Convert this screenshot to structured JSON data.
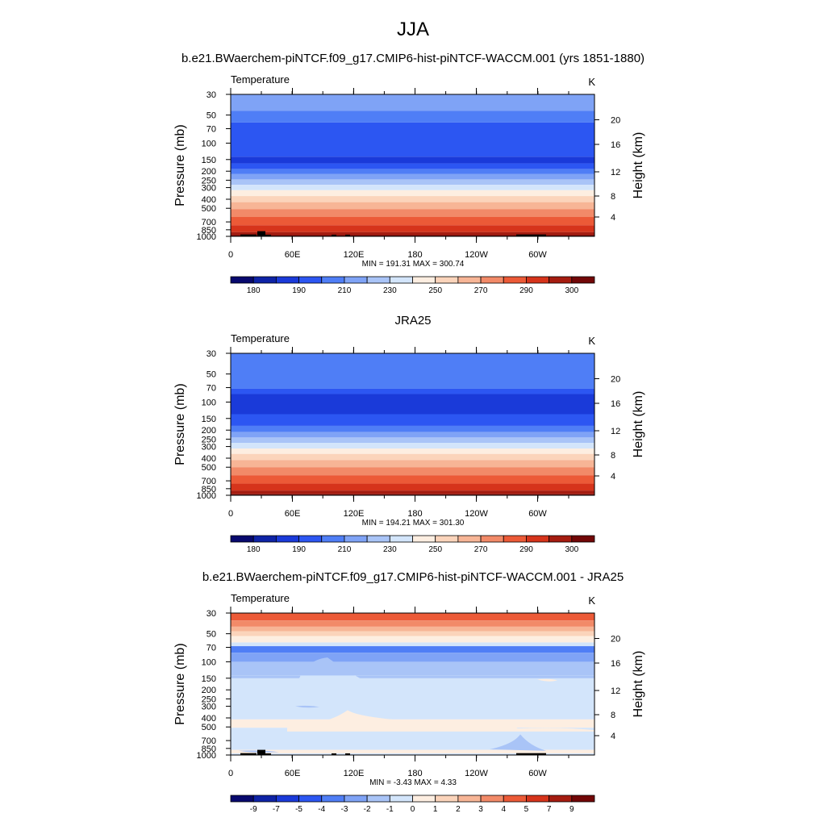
{
  "figure": {
    "title": "JJA"
  },
  "chart_data": [
    {
      "type": "heatmap",
      "title": "b.e21.BWaerchem-piNTCF.f09_g17.CMIP6-hist-piNTCF-WACCM.001 (yrs 1851-1880)",
      "left_label": "Temperature",
      "right_label": "K",
      "ylabel": "Pressure (mb)",
      "ylabel_right": "Height (km)",
      "xticks": [
        "0",
        "60E",
        "120E",
        "180",
        "120W",
        "60W"
      ],
      "yticks": [
        "30",
        "50",
        "70",
        "100",
        "150",
        "200",
        "250",
        "300",
        "400",
        "500",
        "700",
        "850",
        "1000"
      ],
      "yticks_right": [
        "20",
        "16",
        "12",
        "8",
        "4"
      ],
      "stats": "MIN = 191.31  MAX = 300.74",
      "colorbar": {
        "colors": [
          "#08096e",
          "#0e23a6",
          "#1a3ad9",
          "#2c56f2",
          "#4f7ef6",
          "#7fa3f6",
          "#a9c4f7",
          "#d3e5fb",
          "#fdeee1",
          "#fbd4bb",
          "#f7b596",
          "#f28a68",
          "#ec5a37",
          "#d6341b",
          "#a51c10",
          "#720707"
        ],
        "labels": [
          "180",
          "190",
          "210",
          "230",
          "250",
          "270",
          "290",
          "300"
        ]
      },
      "profile": [
        {
          "p": 30,
          "level": 5
        },
        {
          "p": 45,
          "level": 4
        },
        {
          "p": 60,
          "level": 3
        },
        {
          "p": 140,
          "level": 2
        },
        {
          "p": 165,
          "level": 3
        },
        {
          "p": 190,
          "level": 4
        },
        {
          "p": 215,
          "level": 5
        },
        {
          "p": 245,
          "level": 6
        },
        {
          "p": 280,
          "level": 7
        },
        {
          "p": 320,
          "level": 8
        },
        {
          "p": 370,
          "level": 9
        },
        {
          "p": 430,
          "level": 10
        },
        {
          "p": 510,
          "level": 11
        },
        {
          "p": 620,
          "level": 12
        },
        {
          "p": 760,
          "level": 13
        },
        {
          "p": 900,
          "level": 14
        },
        {
          "p": 970,
          "level": 15
        }
      ],
      "terrain": true
    },
    {
      "type": "heatmap",
      "title": "JRA25",
      "left_label": "Temperature",
      "right_label": "K",
      "ylabel": "Pressure (mb)",
      "ylabel_right": "Height (km)",
      "xticks": [
        "0",
        "60E",
        "120E",
        "180",
        "120W",
        "60W"
      ],
      "yticks": [
        "30",
        "50",
        "70",
        "100",
        "150",
        "200",
        "250",
        "300",
        "400",
        "500",
        "700",
        "850",
        "1000"
      ],
      "yticks_right": [
        "20",
        "16",
        "12",
        "8",
        "4"
      ],
      "stats": "MIN = 194.21  MAX = 301.30",
      "colorbar": {
        "colors": [
          "#08096e",
          "#0e23a6",
          "#1a3ad9",
          "#2c56f2",
          "#4f7ef6",
          "#7fa3f6",
          "#a9c4f7",
          "#d3e5fb",
          "#fdeee1",
          "#fbd4bb",
          "#f7b596",
          "#f28a68",
          "#ec5a37",
          "#d6341b",
          "#a51c10",
          "#720707"
        ],
        "labels": [
          "180",
          "190",
          "210",
          "230",
          "250",
          "270",
          "290",
          "300"
        ]
      },
      "profile": [
        {
          "p": 30,
          "level": 4
        },
        {
          "p": 72,
          "level": 3
        },
        {
          "p": 82,
          "level": 2
        },
        {
          "p": 135,
          "level": 3
        },
        {
          "p": 180,
          "level": 4
        },
        {
          "p": 210,
          "level": 5
        },
        {
          "p": 240,
          "level": 6
        },
        {
          "p": 275,
          "level": 7
        },
        {
          "p": 315,
          "level": 8
        },
        {
          "p": 360,
          "level": 9
        },
        {
          "p": 420,
          "level": 10
        },
        {
          "p": 500,
          "level": 11
        },
        {
          "p": 610,
          "level": 12
        },
        {
          "p": 750,
          "level": 13
        },
        {
          "p": 890,
          "level": 14
        },
        {
          "p": 975,
          "level": 15
        }
      ],
      "terrain": false
    },
    {
      "type": "heatmap",
      "title": "b.e21.BWaerchem-piNTCF.f09_g17.CMIP6-hist-piNTCF-WACCM.001 - JRA25",
      "left_label": "Temperature",
      "right_label": "K",
      "ylabel": "Pressure (mb)",
      "ylabel_right": "Height (km)",
      "xticks": [
        "0",
        "60E",
        "120E",
        "180",
        "120W",
        "60W"
      ],
      "yticks": [
        "30",
        "50",
        "70",
        "100",
        "150",
        "200",
        "250",
        "300",
        "400",
        "500",
        "700",
        "850",
        "1000"
      ],
      "yticks_right": [
        "20",
        "16",
        "12",
        "8",
        "4"
      ],
      "stats": "MIN =  -3.43  MAX =   4.33",
      "colorbar": {
        "colors": [
          "#08096e",
          "#0e23a6",
          "#1a3ad9",
          "#2c56f2",
          "#4f7ef6",
          "#7fa3f6",
          "#a9c4f7",
          "#d3e5fb",
          "#fdeee1",
          "#fbd4bb",
          "#f7b596",
          "#f28a68",
          "#ec5a37",
          "#d6341b",
          "#a51c10",
          "#720707"
        ],
        "labels": [
          "-9",
          "-7",
          "-5",
          "-4",
          "-3",
          "-2",
          "-1",
          "0",
          "1",
          "2",
          "3",
          "4",
          "5",
          "7",
          "9"
        ]
      },
      "profile": [
        {
          "p": 30,
          "level": 12
        },
        {
          "p": 36,
          "level": 11
        },
        {
          "p": 42,
          "level": 10
        },
        {
          "p": 47,
          "level": 9
        },
        {
          "p": 53,
          "level": 8
        },
        {
          "p": 62,
          "level": 7
        },
        {
          "p": 68,
          "level": 4
        },
        {
          "p": 80,
          "level": 5
        },
        {
          "p": 100,
          "level": 6
        },
        {
          "p": 140,
          "level": 7
        },
        {
          "p": 415,
          "level": 8
        },
        {
          "p": 510,
          "level": 7
        },
        {
          "p": 880,
          "level": 8
        },
        {
          "p": 960,
          "level": 7
        }
      ],
      "terrain": true
    }
  ]
}
